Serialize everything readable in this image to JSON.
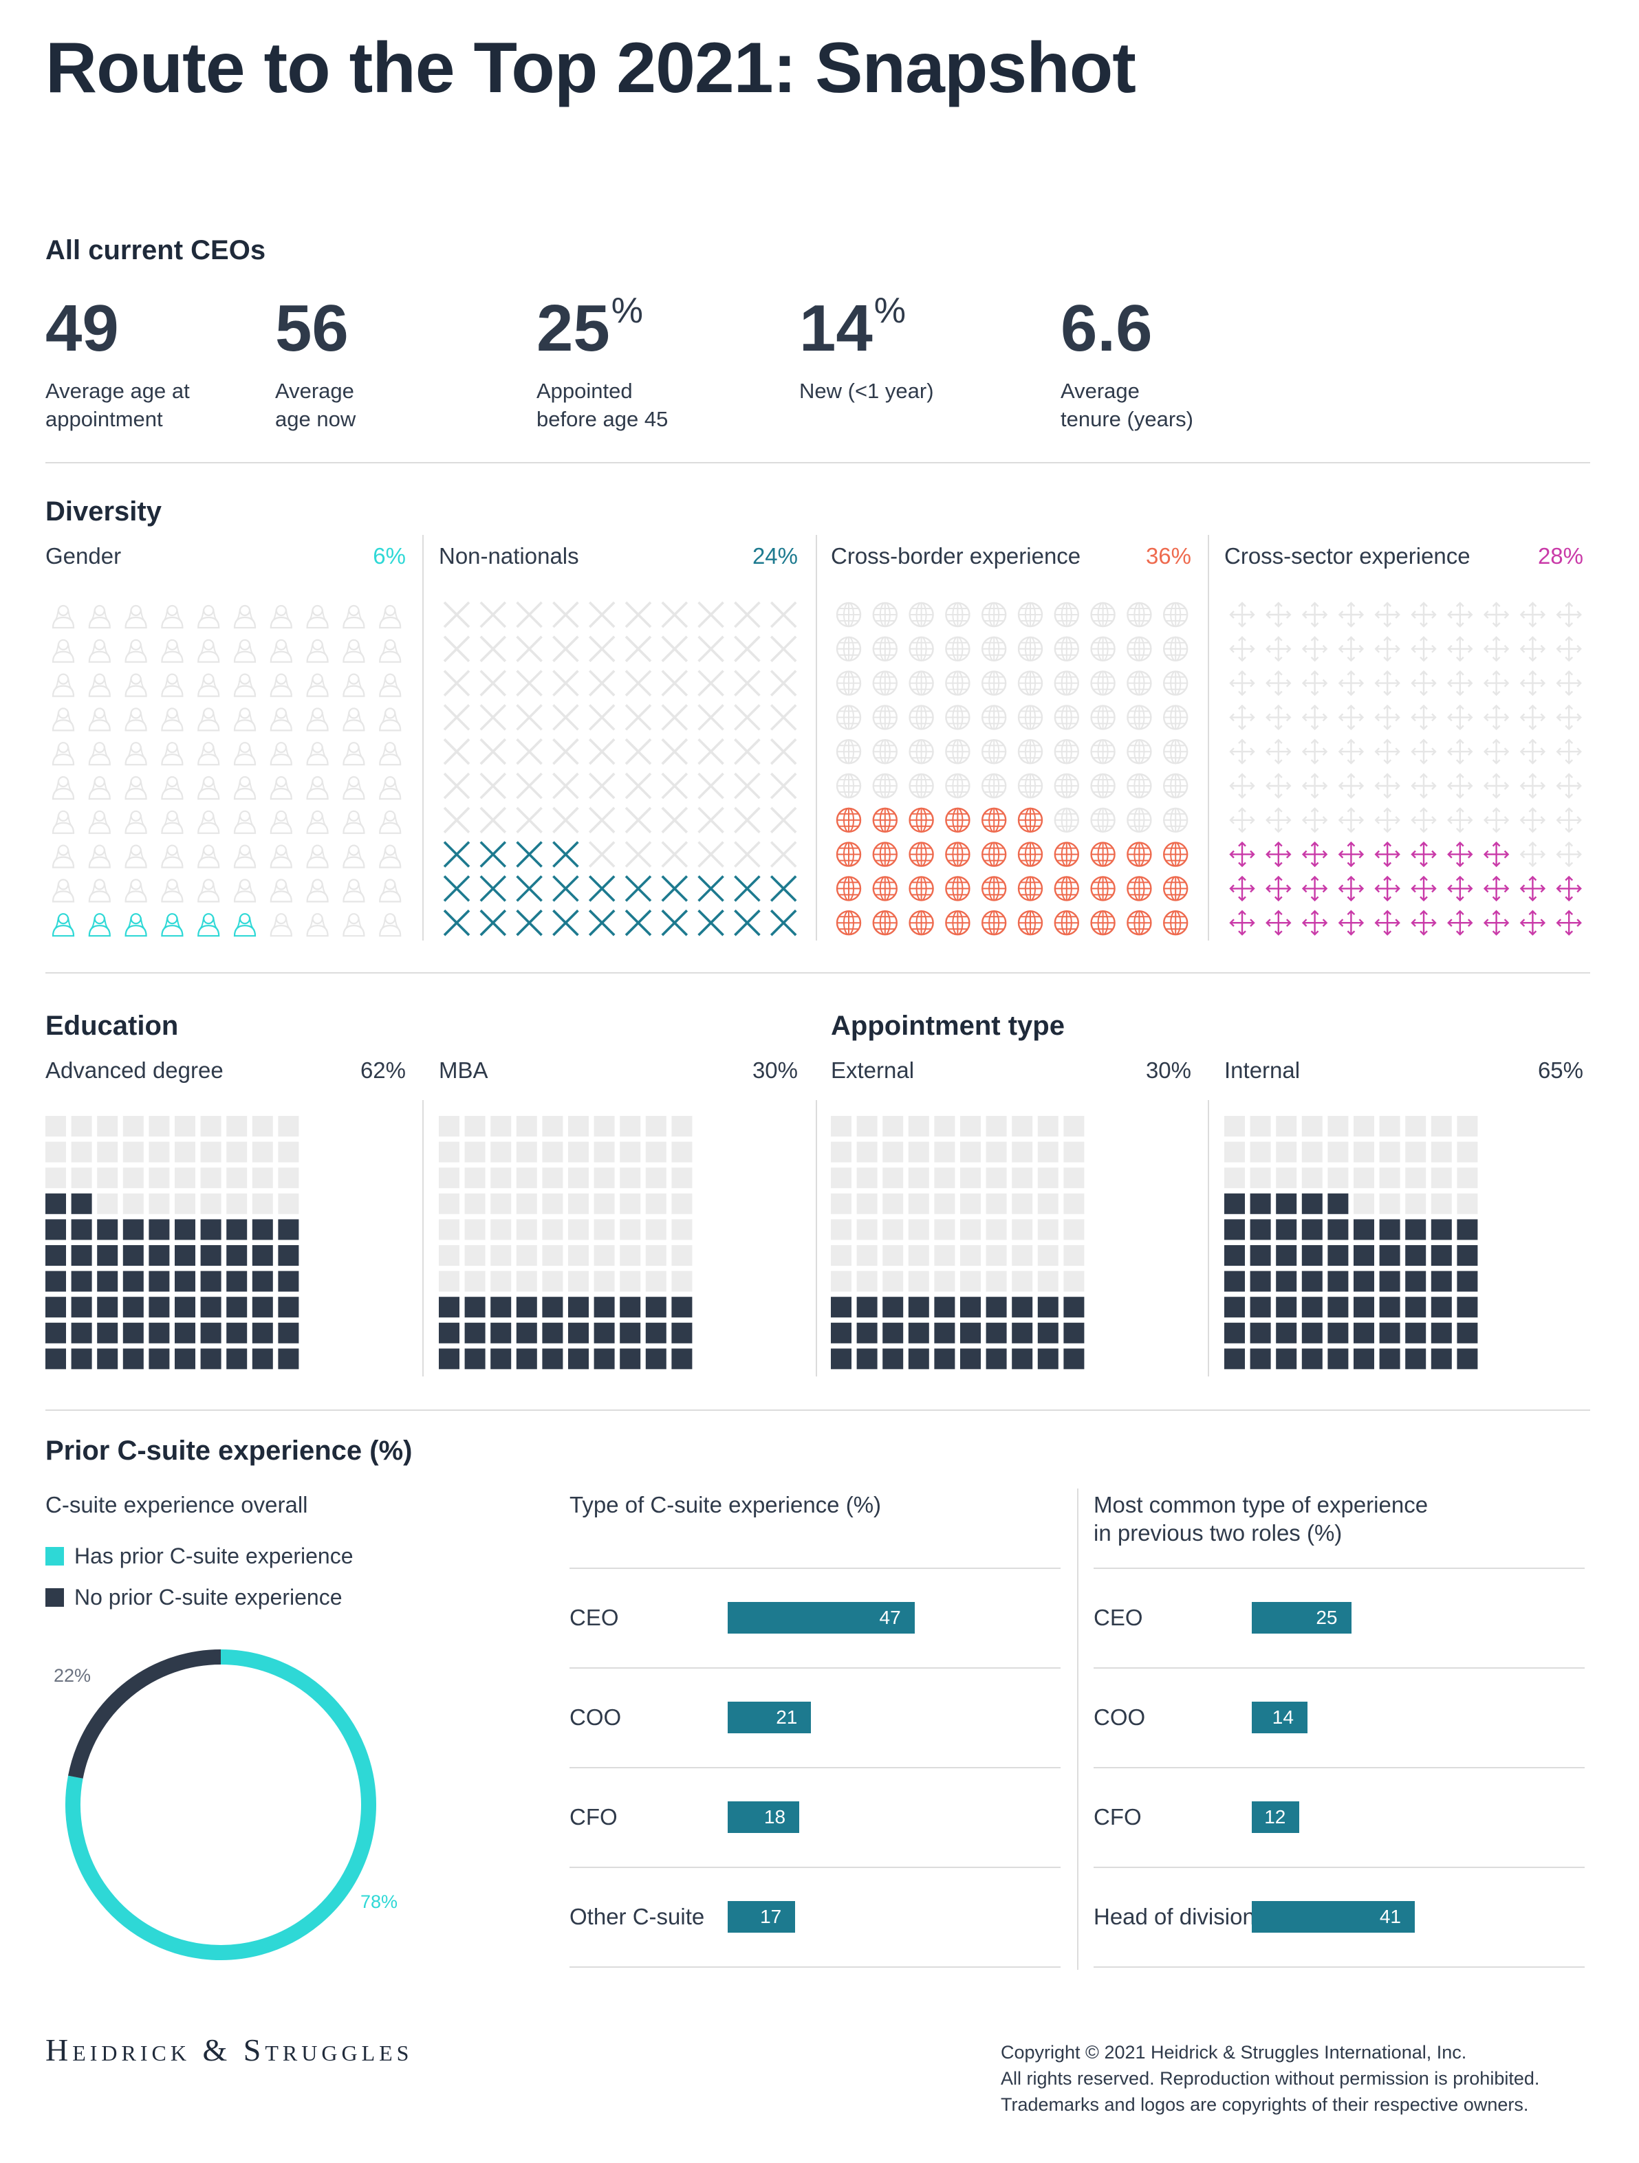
{
  "title": "Route to the Top 2021: Snapshot",
  "all_ceos": {
    "heading": "All current CEOs",
    "stats": [
      {
        "value": "49",
        "suffix": "",
        "label": "Average age at\nappointment"
      },
      {
        "value": "56",
        "suffix": "",
        "label": "Average\nage now"
      },
      {
        "value": "25",
        "suffix": "%",
        "label": "Appointed\nbefore age 45"
      },
      {
        "value": "14",
        "suffix": "%",
        "label": "New (<1 year)"
      },
      {
        "value": "6.6",
        "suffix": "",
        "label": "Average\ntenure (years)"
      }
    ]
  },
  "diversity": {
    "heading": "Diversity",
    "panels": [
      {
        "label": "Gender",
        "pct": "6%",
        "icon": "person-icon",
        "color": "#2ed8d6"
      },
      {
        "label": "Non-nationals",
        "pct": "24%",
        "icon": "cross-icon",
        "color": "#1d7a8f"
      },
      {
        "label": "Cross-border experience",
        "pct": "36%",
        "icon": "globe-icon",
        "color": "#ee6a4e"
      },
      {
        "label": "Cross-sector experience",
        "pct": "28%",
        "icon": "arrows-icon",
        "color": "#c93aa8"
      }
    ]
  },
  "education": {
    "heading": "Education",
    "panels": [
      {
        "label": "Advanced degree",
        "pct": "62%"
      },
      {
        "label": "MBA",
        "pct": "30%"
      }
    ]
  },
  "appointment": {
    "heading": "Appointment type",
    "panels": [
      {
        "label": "External",
        "pct": "30%"
      },
      {
        "label": "Internal",
        "pct": "65%"
      }
    ]
  },
  "prior_csuite": {
    "heading": "Prior C-suite experience (%)",
    "overall_heading": "C-suite experience overall",
    "legend": [
      {
        "label": "Has prior C-suite experience",
        "color": "#2ed8d6"
      },
      {
        "label": "No prior C-suite experience",
        "color": "#2f3a4a"
      }
    ],
    "donut_labels": {
      "no": "22%",
      "has": "78%"
    },
    "type_heading": "Type of C-suite experience (%)",
    "common_heading": "Most common type of experience\nin previous two roles (%)"
  },
  "colors": {
    "dark": "#2f3a4a",
    "light": "#eeeeee",
    "bar": "#1d7a8f",
    "teal": "#2ed8d6"
  },
  "chart_data": [
    {
      "type": "waffle",
      "title": "Gender",
      "values": [
        6
      ],
      "total": 100,
      "unit": "%"
    },
    {
      "type": "waffle",
      "title": "Non-nationals",
      "values": [
        24
      ],
      "total": 100,
      "unit": "%"
    },
    {
      "type": "waffle",
      "title": "Cross-border experience",
      "values": [
        36
      ],
      "total": 100,
      "unit": "%"
    },
    {
      "type": "waffle",
      "title": "Cross-sector experience",
      "values": [
        28
      ],
      "total": 100,
      "unit": "%"
    },
    {
      "type": "waffle",
      "title": "Advanced degree",
      "values": [
        62
      ],
      "total": 100,
      "unit": "%"
    },
    {
      "type": "waffle",
      "title": "MBA",
      "values": [
        30
      ],
      "total": 100,
      "unit": "%"
    },
    {
      "type": "waffle",
      "title": "External",
      "values": [
        30
      ],
      "total": 100,
      "unit": "%"
    },
    {
      "type": "waffle",
      "title": "Internal",
      "values": [
        65
      ],
      "total": 100,
      "unit": "%"
    },
    {
      "type": "pie",
      "title": "C-suite experience overall",
      "categories": [
        "Has prior C-suite experience",
        "No prior C-suite experience"
      ],
      "values": [
        78,
        22
      ]
    },
    {
      "type": "bar",
      "title": "Type of C-suite experience (%)",
      "orientation": "horizontal",
      "categories": [
        "CEO",
        "COO",
        "CFO",
        "Other C-suite"
      ],
      "values": [
        47,
        21,
        18,
        17
      ]
    },
    {
      "type": "bar",
      "title": "Most common type of experience in previous two roles (%)",
      "orientation": "horizontal",
      "categories": [
        "CEO",
        "COO",
        "CFO",
        "Head of division"
      ],
      "values": [
        25,
        14,
        12,
        41
      ]
    }
  ],
  "footer": {
    "logo": "Heidrick & Struggles",
    "copyright": [
      "Copyright © 2021 Heidrick & Struggles International, Inc.",
      "All rights reserved. Reproduction without permission is prohibited.",
      "Trademarks and logos are copyrights of their respective owners."
    ]
  }
}
